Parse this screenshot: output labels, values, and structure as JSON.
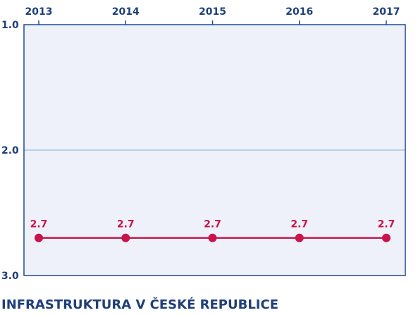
{
  "chart_data": {
    "type": "line",
    "title": "INFRASTRUKTURA V ČESKÉ REPUBLICE",
    "xlabel": "",
    "ylabel": "",
    "x": [
      "2013",
      "2014",
      "2015",
      "2016",
      "2017"
    ],
    "x_axis_position": "top",
    "y_axis_inverted": true,
    "ylim": [
      1.0,
      3.0
    ],
    "y_ticks": [
      "1.0",
      "2.0",
      "3.0"
    ],
    "series": [
      {
        "values": [
          2.7,
          2.7,
          2.7,
          2.7,
          2.7
        ],
        "data_labels": [
          "2.7",
          "2.7",
          "2.7",
          "2.7",
          "2.7"
        ]
      }
    ],
    "grid": "horizontal",
    "colors": {
      "plot_background": "#eef1fa",
      "frame": "#1f4a8f",
      "gridline": "#a9c3e6",
      "series": "#c8144a",
      "text": "#1f3f7a"
    }
  }
}
